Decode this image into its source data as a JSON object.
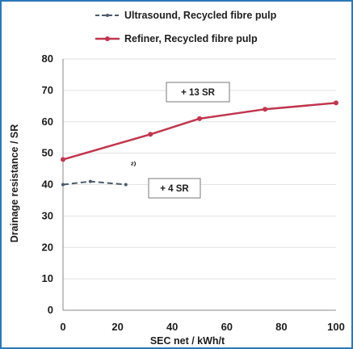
{
  "chart_data": {
    "type": "line",
    "xlabel": "SEC net / kWh/t",
    "ylabel": "Drainage resistance / SR",
    "xlim": [
      0,
      100
    ],
    "ylim": [
      0,
      80
    ],
    "xticks": [
      0,
      20,
      40,
      60,
      80,
      100
    ],
    "yticks": [
      0,
      10,
      20,
      30,
      40,
      50,
      60,
      70,
      80
    ],
    "grid": "horizontal",
    "legend_position": "top",
    "series": [
      {
        "name": "Ultrasound, Recycled fibre pulp",
        "color": "#4a5a6a",
        "line_style": "dashed",
        "x": [
          0,
          10,
          23
        ],
        "y": [
          40,
          41,
          40
        ]
      },
      {
        "name": "Refiner, Recycled fibre pulp",
        "color": "#c0364e",
        "line_style": "solid",
        "x": [
          0,
          32,
          50,
          74,
          100
        ],
        "y": [
          48,
          56,
          61,
          64,
          66
        ]
      }
    ],
    "annotations": [
      {
        "text": "+ 13 SR"
      },
      {
        "text": "+ 4 SR"
      }
    ],
    "point_label": "²⁾"
  }
}
